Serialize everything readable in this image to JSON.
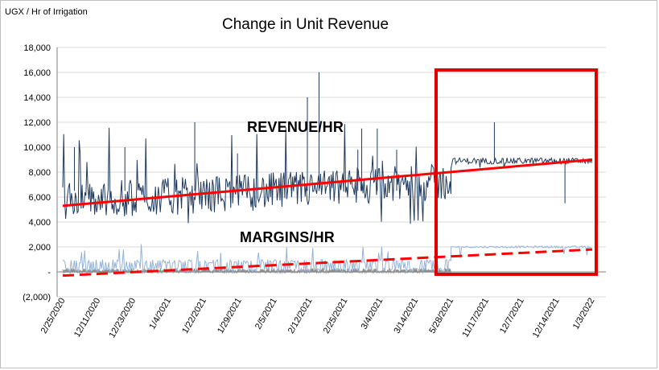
{
  "chart_data": {
    "type": "line",
    "title": "Change in Unit Revenue",
    "ylabel": "UGX / Hr of Irrigation",
    "xlabel": "",
    "ylim": [
      -2000,
      18000
    ],
    "yticks": [
      18000,
      16000,
      14000,
      12000,
      10000,
      8000,
      6000,
      4000,
      2000,
      0,
      -2000
    ],
    "ytick_labels": [
      "18,000",
      "16,000",
      "14,000",
      "12,000",
      "10,000",
      "8,000",
      "6,000",
      "4,000",
      "2,000",
      "-",
      "(2,000)"
    ],
    "x_categories": [
      "2/25/2020",
      "12/11/2020",
      "12/23/2020",
      "1/4/2021",
      "1/22/2021",
      "1/29/2021",
      "2/5/2021",
      "2/12/2021",
      "2/25/2021",
      "3/4/2021",
      "3/14/2021",
      "5/28/2021",
      "11/17/2021",
      "12/7/2021",
      "12/14/2021",
      "1/3/2022"
    ],
    "grid": true,
    "legend": "none",
    "colors": {
      "revenue": "#1f3a5f",
      "margins": "#95b3d7",
      "margins_low": "#8c8c8c",
      "trend": "#ff0000",
      "highlight_box": "#e00000",
      "grid": "#d9d9d9"
    },
    "annotations": {
      "revenue": "REVENUE/HR",
      "margins": "MARGINS/HR"
    },
    "series": [
      {
        "name": "REVENUE/HR",
        "style": "noisy-line",
        "phase1_range": [
          4000,
          8000
        ],
        "phase1_typical": 6500,
        "phase2_range": [
          8500,
          9200
        ],
        "phase2_typical": 8900,
        "peak": 16000
      },
      {
        "name": "MARGINS/HR",
        "style": "noisy-line",
        "phase1_range": [
          0,
          1000
        ],
        "phase2_typical": 2000
      },
      {
        "name": "Revenue trend",
        "style": "solid",
        "start": 5300,
        "end": 9000
      },
      {
        "name": "Margin trend",
        "style": "dashed",
        "start": -300,
        "end": 1800
      }
    ],
    "highlight_region": {
      "from_category": "5/28/2021",
      "to_category": "1/3/2022"
    }
  }
}
